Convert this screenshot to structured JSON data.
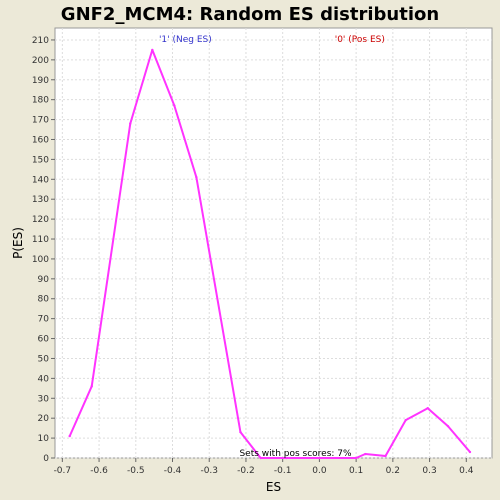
{
  "chart_data": {
    "type": "line",
    "title": "GNF2_MCM4: Random ES distribution",
    "xlabel": "ES",
    "ylabel": "P(ES)",
    "xlim": [
      -0.72,
      0.47
    ],
    "ylim": [
      0,
      216
    ],
    "xticks": [
      -0.7,
      -0.6,
      -0.5,
      -0.4,
      -0.3,
      -0.2,
      -0.1,
      0.0,
      0.1,
      0.2,
      0.3,
      0.4
    ],
    "xtick_labels": [
      "-0.7",
      "-0.6",
      "-0.5",
      "-0.4",
      "-0.3",
      "-0.2",
      "-0.1",
      "0.0",
      "0.1",
      "0.2",
      "0.3",
      "0.4"
    ],
    "yticks": [
      0,
      10,
      20,
      30,
      40,
      50,
      60,
      70,
      80,
      90,
      100,
      110,
      120,
      130,
      140,
      150,
      160,
      170,
      180,
      190,
      200,
      210
    ],
    "grid": true,
    "series": [
      {
        "color": "#ff33ff",
        "x": [
          -0.68,
          -0.62,
          -0.515,
          -0.455,
          -0.395,
          -0.335,
          -0.215,
          -0.16,
          -0.09,
          0.0,
          0.1,
          0.125,
          0.18,
          0.235,
          0.295,
          0.35,
          0.41
        ],
        "y": [
          11,
          36,
          168,
          205,
          177,
          141,
          13,
          0,
          0,
          0,
          0,
          2,
          1,
          19,
          25,
          16,
          3
        ]
      }
    ],
    "annotations": {
      "neg_label": "'1' (Neg ES)",
      "pos_label": "'0' (Pos ES)",
      "pos_scores_text": "Sets with pos scores: 7%"
    },
    "colors": {
      "background": "#ece9d8",
      "plot_area": "#ffffff",
      "grid": "#dddddd",
      "neg_label": "#3333cc",
      "pos_label": "#cc0000",
      "line": "#ff33ff"
    }
  }
}
